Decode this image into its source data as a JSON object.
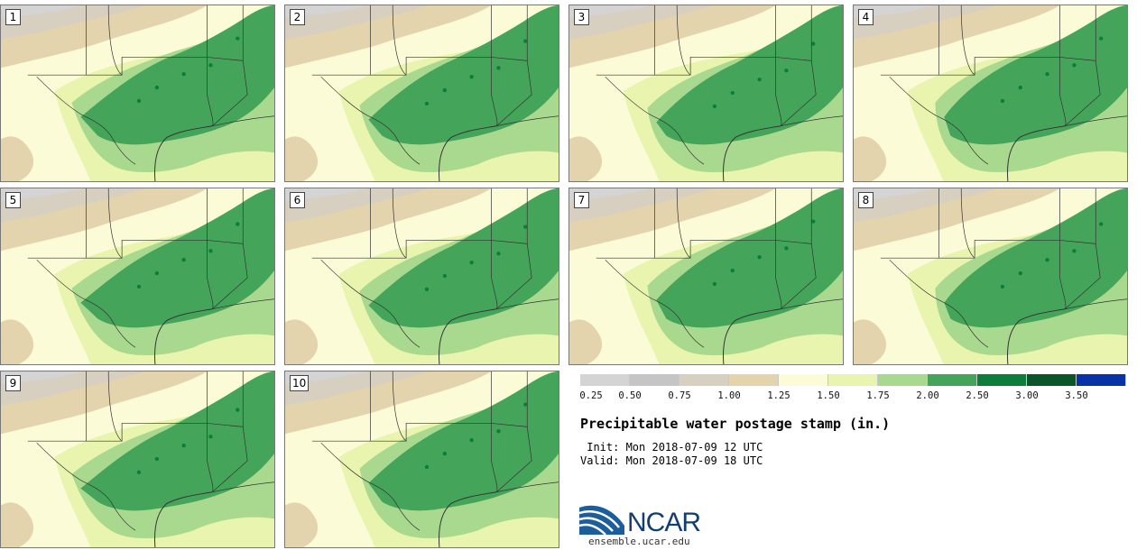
{
  "panels": [
    {
      "label": "1"
    },
    {
      "label": "2"
    },
    {
      "label": "3"
    },
    {
      "label": "4"
    },
    {
      "label": "5"
    },
    {
      "label": "6"
    },
    {
      "label": "7"
    },
    {
      "label": "8"
    },
    {
      "label": "9"
    },
    {
      "label": "10"
    }
  ],
  "legend": {
    "colors": [
      "#d4d4d4",
      "#c5c5c5",
      "#d7d0c1",
      "#e3d4ae",
      "#fbfbd7",
      "#e9f4ae",
      "#a9d98e",
      "#44a55a",
      "#0c7d3a",
      "#0a5529",
      "#0a32a8"
    ],
    "ticks": [
      "0.25",
      "0.50",
      "0.75",
      "1.00",
      "1.25",
      "1.50",
      "1.75",
      "2.00",
      "2.50",
      "3.00",
      "3.50"
    ]
  },
  "title": "Precipitable water postage stamp (in.)",
  "init": " Init: Mon 2018-07-09 12 UTC",
  "valid": "Valid: Mon 2018-07-09 18 UTC",
  "logo": {
    "text": "NCAR",
    "url": "ensemble.ucar.edu"
  }
}
